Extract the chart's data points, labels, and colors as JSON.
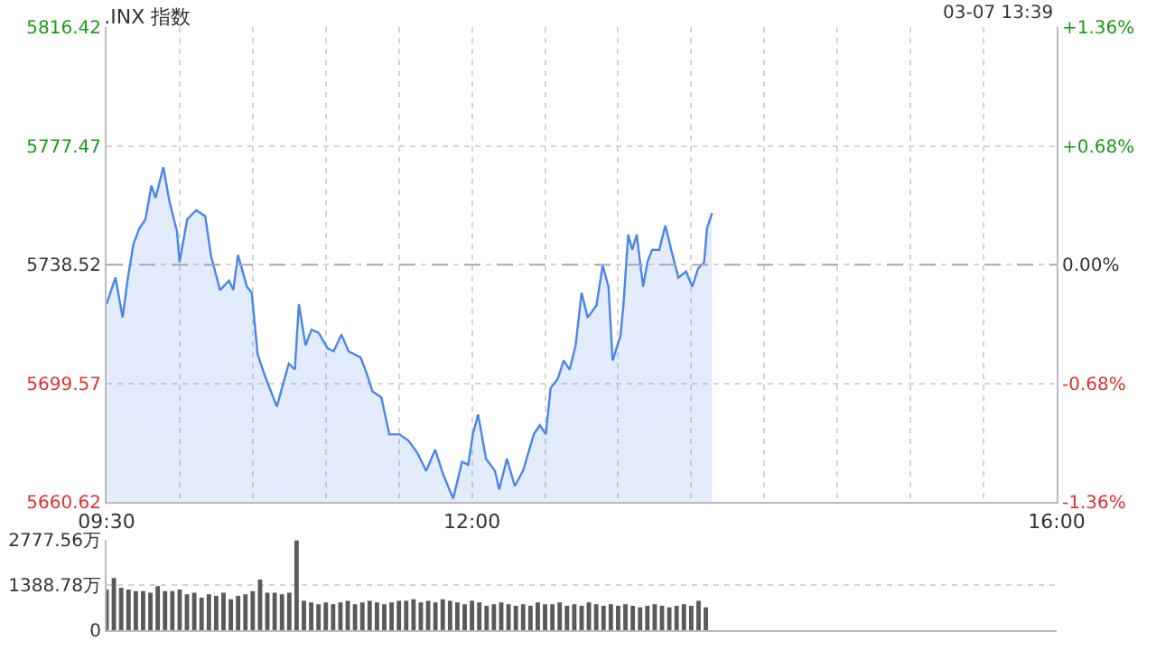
{
  "chart_data": [
    {
      "type": "area",
      "title": ".INX 指数",
      "annotations": [
        "03-07 13:39"
      ],
      "x": [
        9.5,
        9.561,
        9.61,
        9.643,
        9.684,
        9.724,
        9.766,
        9.807,
        9.835,
        9.889,
        9.929,
        9.982,
        9.999,
        10.052,
        10.113,
        10.175,
        10.215,
        10.276,
        10.338,
        10.367,
        10.399,
        10.46,
        10.493,
        10.534,
        10.583,
        10.665,
        10.706,
        10.747,
        10.788,
        10.816,
        10.861,
        10.902,
        10.951,
        11.012,
        11.054,
        11.107,
        11.156,
        11.238,
        11.278,
        11.319,
        11.38,
        11.434,
        11.503,
        11.564,
        11.625,
        11.687,
        11.748,
        11.802,
        11.871,
        11.932,
        11.974,
        12.006,
        12.042,
        12.096,
        12.158,
        12.186,
        12.239,
        12.293,
        12.349,
        12.423,
        12.464,
        12.505,
        12.538,
        12.587,
        12.627,
        12.668,
        12.709,
        12.75,
        12.791,
        12.852,
        12.894,
        12.934,
        12.962,
        13.016,
        13.036,
        13.069,
        13.097,
        13.127,
        13.171,
        13.2,
        13.232,
        13.281,
        13.323,
        13.363,
        13.412,
        13.465,
        13.507,
        13.547,
        13.588,
        13.608,
        13.642
      ],
      "series": [
        {
          "color": "#4a86e8",
          "values": [
            5725.6,
            5734.3,
            5721.2,
            5733.3,
            5745.3,
            5750.4,
            5753.4,
            5764.5,
            5760.4,
            5770.5,
            5759.5,
            5749.4,
            5739.3,
            5753.4,
            5756.4,
            5754.4,
            5741.4,
            5730.2,
            5733.3,
            5730.2,
            5741.7,
            5731.3,
            5729.3,
            5709.1,
            5702.1,
            5692.0,
            5699.1,
            5706.1,
            5704.1,
            5725.6,
            5712.1,
            5717.2,
            5716.2,
            5711.1,
            5710.1,
            5715.6,
            5710.1,
            5708.1,
            5703.1,
            5697.0,
            5695.0,
            5682.9,
            5682.9,
            5680.9,
            5676.9,
            5670.9,
            5677.9,
            5669.9,
            5661.8,
            5673.9,
            5672.9,
            5682.9,
            5689.4,
            5674.9,
            5670.9,
            5664.8,
            5674.9,
            5665.9,
            5670.9,
            5682.9,
            5685.9,
            5682.9,
            5698.1,
            5701.1,
            5707.1,
            5704.1,
            5712.1,
            5729.3,
            5721.2,
            5725.2,
            5738.3,
            5731.3,
            5707.1,
            5715.2,
            5725.2,
            5748.4,
            5743.4,
            5748.4,
            5731.3,
            5739.3,
            5743.4,
            5743.4,
            5751.4,
            5743.4,
            5734.3,
            5736.3,
            5731.3,
            5737.3,
            5739.3,
            5750.4,
            5755.4
          ]
        }
      ],
      "xlim": [
        9.5,
        16
      ],
      "xticks": [
        {
          "value": 9.5,
          "label": "09:30"
        },
        {
          "value": 10,
          "label": null
        },
        {
          "value": 10.5,
          "label": null
        },
        {
          "value": 11,
          "label": null
        },
        {
          "value": 11.5,
          "label": null
        },
        {
          "value": 12,
          "label": "12:00"
        },
        {
          "value": 12.5,
          "label": null
        },
        {
          "value": 13,
          "label": null
        },
        {
          "value": 13.5,
          "label": null
        },
        {
          "value": 14,
          "label": null
        },
        {
          "value": 14.5,
          "label": null
        },
        {
          "value": 15,
          "label": null
        },
        {
          "value": 15.5,
          "label": null
        },
        {
          "value": 16,
          "label": "16:00"
        }
      ],
      "ylim": [
        5660.62,
        5816.42
      ],
      "yticks": [
        5660.62,
        5699.57,
        5738.52,
        5777.47,
        5816.42
      ],
      "y2lim": [
        -1.36,
        1.36
      ],
      "y2ticks": [
        {
          "value": -1.36,
          "label": "-1.36%"
        },
        {
          "value": -0.68,
          "label": "-0.68%"
        },
        {
          "value": 0,
          "label": "0.00%"
        },
        {
          "value": 0.68,
          "label": "+0.68%"
        },
        {
          "value": 1.36,
          "label": "+1.36%"
        }
      ],
      "ref_lines": [
        {
          "axis": "y",
          "value": 5738.52,
          "color": "#aaaaaa",
          "line_style": "dashed"
        }
      ],
      "grid": true
    },
    {
      "type": "bar",
      "x": [
        9.5,
        9.55,
        9.6,
        9.65,
        9.7,
        9.75,
        9.8,
        9.85,
        9.9,
        9.95,
        10.0,
        10.05,
        10.1,
        10.15,
        10.2,
        10.25,
        10.3,
        10.35,
        10.4,
        10.45,
        10.5,
        10.55,
        10.6,
        10.65,
        10.7,
        10.75,
        10.8,
        10.85,
        10.9,
        10.95,
        11.0,
        11.05,
        11.1,
        11.15,
        11.2,
        11.25,
        11.3,
        11.35,
        11.4,
        11.45,
        11.5,
        11.55,
        11.6,
        11.65,
        11.7,
        11.75,
        11.8,
        11.85,
        11.9,
        11.95,
        12.0,
        12.05,
        12.1,
        12.15,
        12.2,
        12.25,
        12.3,
        12.35,
        12.4,
        12.45,
        12.5,
        12.55,
        12.6,
        12.65,
        12.7,
        12.75,
        12.8,
        12.85,
        12.9,
        12.95,
        13.0,
        13.05,
        13.1,
        13.15,
        13.2,
        13.25,
        13.3,
        13.35,
        13.4,
        13.45,
        13.5,
        13.55,
        13.6
      ],
      "series": [
        {
          "color": "#5a5a5a",
          "values": [
            1250,
            1600,
            1300,
            1250,
            1200,
            1200,
            1150,
            1350,
            1200,
            1200,
            1250,
            1100,
            1150,
            1000,
            1100,
            1050,
            1150,
            950,
            1050,
            1100,
            1200,
            1550,
            1150,
            1150,
            1100,
            1150,
            2750,
            900,
            850,
            800,
            850,
            800,
            850,
            900,
            800,
            850,
            900,
            850,
            800,
            850,
            900,
            900,
            950,
            850,
            900,
            850,
            950,
            900,
            850,
            800,
            900,
            850,
            750,
            800,
            850,
            800,
            750,
            800,
            750,
            850,
            800,
            800,
            850,
            750,
            800,
            750,
            850,
            800,
            750,
            800,
            750,
            800,
            750,
            700,
            750,
            800,
            750,
            700,
            750,
            800,
            750,
            900,
            700
          ]
        }
      ],
      "xlim": [
        9.5,
        16
      ],
      "ylim": [
        0,
        2777.56
      ],
      "yticks": [
        0,
        {
          "value": 1388.78,
          "label": "1388.78万"
        },
        {
          "value": 2777.56,
          "label": "2777.56万"
        }
      ],
      "grid": "y",
      "tick_labels": "y"
    }
  ]
}
